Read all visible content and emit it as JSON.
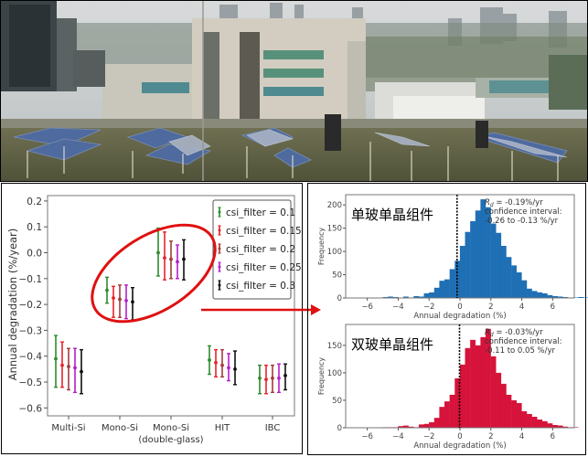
{
  "photo": {
    "description": "Rooftop PV test site with rows of tilted solar modules, buildings and city skyline in background",
    "sky_color": "#cfd3d6",
    "roof_color": "#6a6b4e",
    "panel_color": "#4d6aa0"
  },
  "colors": {
    "green": "#2e8b2e",
    "red": "#e8242a",
    "brown": "#a33b3b",
    "magenta": "#b620c8",
    "black": "#111111",
    "hist_blue": "#1f6fb4",
    "hist_red": "#d6133a",
    "ellipse": "#e01010",
    "arrow": "#e01010"
  },
  "chart_data": [
    {
      "type": "errorbar",
      "title": "",
      "xlabel": "",
      "ylabel": "Annual degradation (%/year)",
      "ylim": [
        -0.63,
        0.22
      ],
      "yticks": [
        0.2,
        0.1,
        0.0,
        -0.1,
        -0.2,
        -0.3,
        -0.4,
        -0.5,
        -0.6
      ],
      "ytick_labels": [
        "0.2",
        "0.1",
        "0.0",
        "−0.1",
        "−0.2",
        "−0.3",
        "−0.4",
        "−0.5",
        "−0.6"
      ],
      "categories": [
        "Multi-Si",
        "Mono-Si",
        "Mono-Si (double-glass)",
        "HIT",
        "IBC"
      ],
      "category_labels": [
        [
          "Multi-Si"
        ],
        [
          "Mono-Si"
        ],
        [
          "Mono-Si",
          "(double-glass)"
        ],
        [
          "HIT"
        ],
        [
          "IBC"
        ]
      ],
      "legend_position": "upper right",
      "grid": false,
      "series": [
        {
          "name": "csi_filter = 0.1",
          "color": "#2e8b2e",
          "values": [
            -0.41,
            -0.145,
            0.0,
            -0.415,
            -0.485
          ],
          "lower": [
            -0.52,
            -0.195,
            -0.09,
            -0.47,
            -0.545
          ],
          "upper": [
            -0.32,
            -0.095,
            0.095,
            -0.36,
            -0.435
          ]
        },
        {
          "name": "csi_filter = 0.15",
          "color": "#e8242a",
          "values": [
            -0.435,
            -0.175,
            -0.02,
            -0.425,
            -0.49
          ],
          "lower": [
            -0.52,
            -0.25,
            -0.105,
            -0.48,
            -0.545
          ],
          "upper": [
            -0.345,
            -0.13,
            0.08,
            -0.375,
            -0.435
          ]
        },
        {
          "name": "csi_filter = 0.2",
          "color": "#a33b3b",
          "values": [
            -0.44,
            -0.18,
            -0.025,
            -0.435,
            -0.485
          ],
          "lower": [
            -0.53,
            -0.25,
            -0.1,
            -0.48,
            -0.54
          ],
          "upper": [
            -0.37,
            -0.125,
            0.045,
            -0.375,
            -0.435
          ]
        },
        {
          "name": "csi_filter = 0.25",
          "color": "#b620c8",
          "values": [
            -0.445,
            -0.185,
            -0.035,
            -0.445,
            -0.485
          ],
          "lower": [
            -0.54,
            -0.255,
            -0.1,
            -0.495,
            -0.54
          ],
          "upper": [
            -0.37,
            -0.125,
            0.03,
            -0.39,
            -0.43
          ]
        },
        {
          "name": "csi_filter = 0.3",
          "color": "#111111",
          "values": [
            -0.46,
            -0.19,
            -0.025,
            -0.45,
            -0.475
          ],
          "lower": [
            -0.545,
            -0.26,
            -0.105,
            -0.51,
            -0.53
          ],
          "upper": [
            -0.375,
            -0.135,
            0.05,
            -0.38,
            -0.43
          ]
        }
      ],
      "annotations": [
        "red ellipse around Mono-Si and Mono-Si (double-glass) groups",
        "red arrow pointing to histogram panels"
      ]
    },
    {
      "type": "bar",
      "subtype": "histogram",
      "title": "单玻单晶组件",
      "xlabel": "Annual degradation (%)",
      "ylabel": "Frequency",
      "xlim": [
        -7.4,
        7.4
      ],
      "ylim": [
        0,
        222
      ],
      "xticks": [
        -6,
        -4,
        -2,
        0,
        2,
        4,
        6
      ],
      "yticks": [
        0,
        50,
        100,
        150,
        200
      ],
      "color": "#1f6fb4",
      "bin_width": 0.333,
      "bin_start": -6.0,
      "counts": [
        1,
        0,
        0,
        2,
        3,
        2,
        1,
        3,
        1,
        4,
        3,
        10,
        12,
        22,
        37,
        40,
        62,
        80,
        112,
        142,
        165,
        188,
        212,
        195,
        160,
        140,
        112,
        88,
        70,
        55,
        38,
        20,
        15,
        12,
        10,
        6,
        4,
        3,
        2,
        1,
        1,
        2,
        1,
        0,
        0
      ],
      "vline": {
        "x": -0.19,
        "style": "dashed",
        "color": "#000000"
      },
      "annotation": [
        "R_d = -0.19%/yr",
        "confidence interval:",
        "-0.26 to -0.13 %/yr"
      ]
    },
    {
      "type": "bar",
      "subtype": "histogram",
      "title": "双玻单晶组件",
      "xlabel": "Annual degradation (%)",
      "ylabel": "Frequency",
      "xlim": [
        -7.4,
        7.4
      ],
      "ylim": [
        0,
        188
      ],
      "xticks": [
        -6,
        -4,
        -2,
        0,
        2,
        4,
        6
      ],
      "yticks": [
        0,
        50,
        100,
        150
      ],
      "color": "#d6133a",
      "bin_width": 0.333,
      "bin_start": -6.0,
      "counts": [
        0,
        0,
        0,
        1,
        1,
        1,
        3,
        4,
        2,
        1,
        6,
        7,
        10,
        18,
        38,
        48,
        60,
        90,
        115,
        145,
        160,
        150,
        165,
        180,
        130,
        100,
        80,
        60,
        50,
        45,
        30,
        25,
        20,
        15,
        12,
        8,
        5,
        4,
        2,
        1,
        1,
        0,
        0,
        0,
        0
      ],
      "vline": {
        "x": -0.03,
        "style": "dashed",
        "color": "#000000"
      },
      "annotation": [
        "R_d = -0.03%/yr",
        "confidence interval:",
        "-0.11 to 0.05 %/yr"
      ]
    }
  ]
}
